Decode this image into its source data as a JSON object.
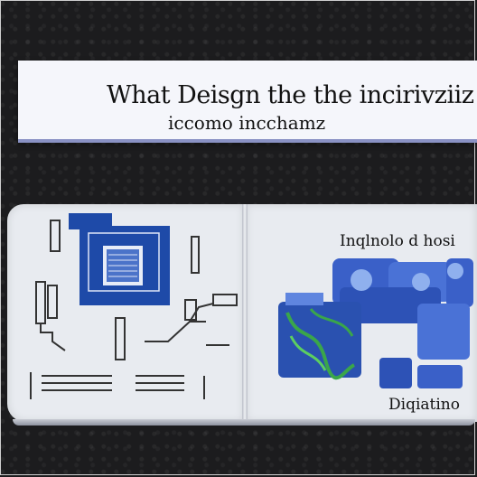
{
  "banner": {
    "title": "What Deisgn the the incirivziiz",
    "subtitle": "iccomo incchamz"
  },
  "right_page": {
    "heading": "Inqlnolo d hosi",
    "footer": "Diqiatino"
  },
  "colors": {
    "background": "#1c1c1e",
    "banner": "#f5f6fb",
    "banner_rule": "#8a92c4",
    "page": "#e8ebf0",
    "chip_blue": "#1e4aa8",
    "circuit_green": "#3aa64a"
  }
}
